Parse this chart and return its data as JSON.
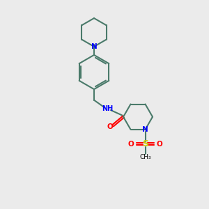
{
  "bg_color": "#ebebeb",
  "bond_color": "#4a7a6a",
  "N_color": "#0000ff",
  "O_color": "#ff0000",
  "S_color": "#cccc00",
  "line_width": 1.5,
  "figsize": [
    3.0,
    3.0
  ],
  "dpi": 100,
  "xlim": [
    0,
    10
  ],
  "ylim": [
    0,
    10
  ]
}
